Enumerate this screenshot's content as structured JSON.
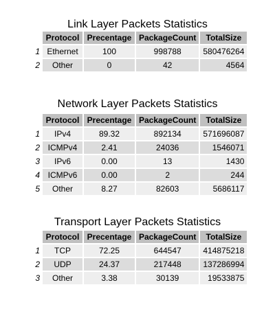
{
  "headers": [
    "Protocol",
    "Precentage",
    "PackageCount",
    "TotalSize"
  ],
  "tables": [
    {
      "title": "Link Layer Packets Statistics",
      "rows": [
        {
          "num": "1",
          "protocol": "Ethernet",
          "percentage": "100",
          "count": "998788",
          "size": "580476264"
        },
        {
          "num": "2",
          "protocol": "Other",
          "percentage": "0",
          "count": "42",
          "size": "4564"
        }
      ]
    },
    {
      "title": "Network Layer Packets Statistics",
      "rows": [
        {
          "num": "1",
          "protocol": "IPv4",
          "percentage": "89.32",
          "count": "892134",
          "size": "571696087"
        },
        {
          "num": "2",
          "protocol": "ICMPv4",
          "percentage": "2.41",
          "count": "24036",
          "size": "1546071"
        },
        {
          "num": "3",
          "protocol": "IPv6",
          "percentage": "0.00",
          "count": "13",
          "size": "1430"
        },
        {
          "num": "4",
          "protocol": "ICMPv6",
          "percentage": "0.00",
          "count": "2",
          "size": "244"
        },
        {
          "num": "5",
          "protocol": "Other",
          "percentage": "8.27",
          "count": "82603",
          "size": "5686117"
        }
      ]
    },
    {
      "title": "Transport Layer Packets Statistics",
      "rows": [
        {
          "num": "1",
          "protocol": "TCP",
          "percentage": "72.25",
          "count": "644547",
          "size": "414875218"
        },
        {
          "num": "2",
          "protocol": "UDP",
          "percentage": "24.37",
          "count": "217448",
          "size": "137286994"
        },
        {
          "num": "3",
          "protocol": "Other",
          "percentage": "3.38",
          "count": "30139",
          "size": "19533875"
        }
      ]
    }
  ]
}
